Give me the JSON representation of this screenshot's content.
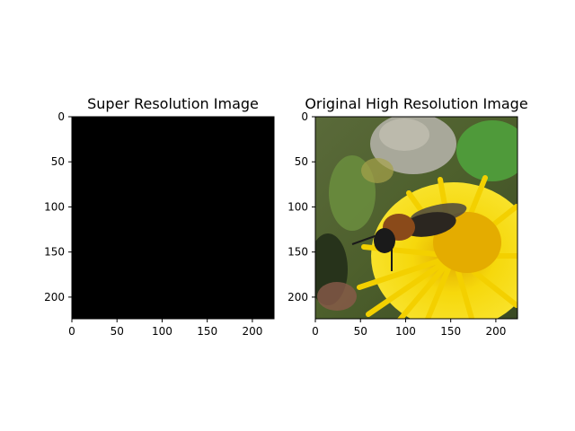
{
  "chart_data": [
    {
      "type": "image",
      "title": "Super Resolution Image",
      "content": "solid-black",
      "fill_color": "#000000",
      "xlim": [
        0,
        224
      ],
      "ylim": [
        224,
        0
      ],
      "x_ticks": [
        0,
        50,
        100,
        150,
        200
      ],
      "y_ticks": [
        0,
        50,
        100,
        150,
        200
      ]
    },
    {
      "type": "image",
      "title": "Original High Resolution Image",
      "content": "photo-bee-on-yellow-dandelion",
      "xlim": [
        0,
        224
      ],
      "ylim": [
        224,
        0
      ],
      "x_ticks": [
        0,
        50,
        100,
        150,
        200
      ],
      "y_ticks": [
        0,
        50,
        100,
        150,
        200
      ]
    }
  ]
}
